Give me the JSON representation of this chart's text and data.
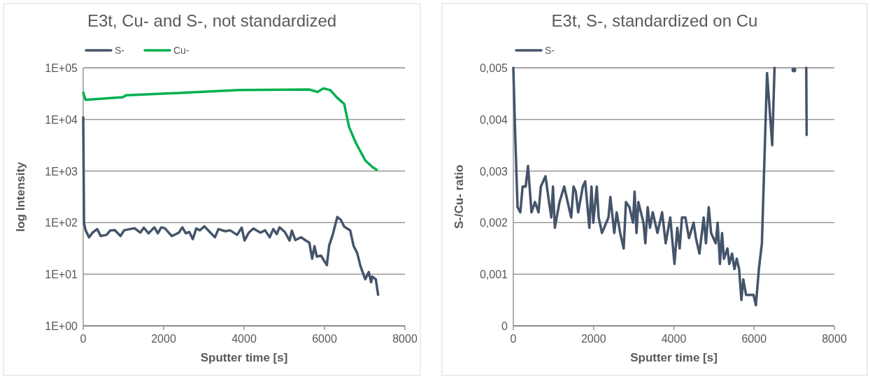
{
  "chart_data": [
    {
      "type": "line",
      "title": "E3t, Cu- and S-, not standardized",
      "xlabel": "Sputter time [s]",
      "ylabel": "log Intensity",
      "log": "y",
      "grid": "y",
      "legend": "top",
      "line_style": "solid",
      "marker": "none",
      "xlim": [
        0,
        8000
      ],
      "xticks": [
        0,
        2000,
        4000,
        6000,
        8000
      ],
      "ylim": [
        1,
        100000
      ],
      "yticks": [
        {
          "value": 1,
          "label": "1E+00"
        },
        {
          "value": 10,
          "label": "1E+01"
        },
        {
          "value": 100,
          "label": "1E+02"
        },
        {
          "value": 1000,
          "label": "1E+03"
        },
        {
          "value": 10000,
          "label": "1E+04"
        },
        {
          "value": 100000,
          "label": "1E+05"
        }
      ],
      "series": [
        {
          "name": "S-",
          "color": "#44546a",
          "x": [
            0,
            20,
            60,
            145,
            232,
            348,
            435,
            580,
            667,
            783,
            928,
            1015,
            1160,
            1275,
            1420,
            1507,
            1623,
            1768,
            1855,
            1942,
            2029,
            2203,
            2377,
            2464,
            2551,
            2638,
            2725,
            2812,
            2899,
            3014,
            3130,
            3275,
            3362,
            3536,
            3652,
            3826,
            3942,
            4012,
            4116,
            4232,
            4406,
            4522,
            4638,
            4725,
            4812,
            4882,
            5014,
            5130,
            5188,
            5275,
            5420,
            5536,
            5623,
            5693,
            5751,
            5809,
            5913,
            6058,
            6116,
            6203,
            6319,
            6406,
            6493,
            6638,
            6725,
            6812,
            6899,
            7014,
            7101,
            7159,
            7188,
            7275,
            7333
          ],
          "values": [
            11000,
            98,
            71,
            52,
            64,
            75,
            55,
            58,
            70,
            72,
            55,
            71,
            75,
            78,
            64,
            80,
            62,
            81,
            62,
            81,
            78,
            55,
            64,
            81,
            62,
            66,
            48,
            77,
            71,
            85,
            68,
            52,
            75,
            68,
            71,
            58,
            80,
            45,
            64,
            77,
            64,
            71,
            52,
            75,
            60,
            81,
            66,
            45,
            70,
            46,
            52,
            45,
            41,
            20,
            35,
            22,
            23,
            15,
            36,
            58,
            129,
            113,
            83,
            71,
            35,
            26,
            14,
            8,
            11,
            7,
            9,
            8,
            4
          ]
        },
        {
          "name": "Cu-",
          "color": "#00b050",
          "x": [
            0,
            58,
            985,
            1070,
            2145,
            3885,
            5620,
            5830,
            5970,
            6145,
            6320,
            6490,
            6610,
            6780,
            7015,
            7190,
            7300
          ],
          "values": [
            33000,
            24000,
            27000,
            29500,
            32000,
            37000,
            38000,
            34000,
            40000,
            37000,
            26000,
            20000,
            7200,
            3500,
            1600,
            1200,
            1050
          ]
        }
      ]
    },
    {
      "type": "line",
      "title": "E3t, S-, standardized on Cu",
      "xlabel": "Sputter time [s]",
      "ylabel": "S-/Cu- ratio",
      "grid": "y",
      "legend": "top",
      "line_style": "solid",
      "marker": "none",
      "xlim": [
        0,
        8000
      ],
      "xticks": [
        0,
        2000,
        4000,
        6000,
        8000
      ],
      "ylim": [
        0,
        0.005
      ],
      "yticks": [
        0,
        {
          "value": 0.001,
          "label": "0,001"
        },
        {
          "value": 0.002,
          "label": "0,002"
        },
        {
          "value": 0.003,
          "label": "0,003"
        },
        {
          "value": 0.004,
          "label": "0,004"
        },
        {
          "value": 0.005,
          "label": "0,005"
        }
      ],
      "series": [
        {
          "name": "S-",
          "color": "#44546a",
          "x": [
            0,
            47,
            105,
            174,
            232,
            308,
            366,
            453,
            541,
            628,
            686,
            802,
            889,
            947,
            988,
            1035,
            1151,
            1267,
            1442,
            1500,
            1557,
            1616,
            1732,
            1791,
            1895,
            1948,
            1993,
            2080,
            2127,
            2209,
            2371,
            2418,
            2516,
            2575,
            2663,
            2750,
            2807,
            2894,
            2982,
            3022,
            3069,
            3116,
            3243,
            3290,
            3348,
            3406,
            3475,
            3592,
            3708,
            3796,
            3911,
            4016,
            4086,
            4145,
            4202,
            4289,
            4377,
            4493,
            4551,
            4638,
            4743,
            4800,
            4870,
            4929,
            5045,
            5092,
            5149,
            5202,
            5248,
            5336,
            5382,
            5452,
            5510,
            5568,
            5627,
            5684,
            5731,
            5801,
            5917,
            5986,
            6045,
            6120,
            6195,
            6323,
            6452,
            6510,
            6750,
            7300,
            7310
          ],
          "values": [
            0.005,
            0.0037,
            0.0023,
            0.0022,
            0.0027,
            0.0027,
            0.0031,
            0.0022,
            0.0024,
            0.0022,
            0.0027,
            0.0029,
            0.0024,
            0.0021,
            0.0027,
            0.0019,
            0.0024,
            0.0027,
            0.0021,
            0.0027,
            0.0026,
            0.0022,
            0.0027,
            0.0028,
            0.0019,
            0.0027,
            0.002,
            0.0027,
            0.0021,
            0.0018,
            0.0021,
            0.0025,
            0.0018,
            0.0022,
            0.0018,
            0.0015,
            0.0024,
            0.0023,
            0.002,
            0.0026,
            0.0018,
            0.0024,
            0.002,
            0.0016,
            0.0023,
            0.0019,
            0.0022,
            0.0018,
            0.0022,
            0.0016,
            0.0021,
            0.0012,
            0.0019,
            0.0015,
            0.0021,
            0.0021,
            0.0017,
            0.002,
            0.0017,
            0.0014,
            0.0021,
            0.0016,
            0.0023,
            0.0018,
            0.0016,
            0.002,
            0.0012,
            0.0018,
            0.0013,
            0.0015,
            0.0012,
            0.0014,
            0.0011,
            0.0013,
            0.0011,
            0.0005,
            0.0009,
            0.0006,
            0.0006,
            0.0006,
            0.0004,
            0.0011,
            0.0016,
            0.0049,
            0.0035,
            0.005,
            null,
            0.005,
            0.0037
          ]
        },
        {
          "type": "scatter",
          "color": "#44546a",
          "marker": "circle",
          "x": [
            6992
          ],
          "values": [
            0.00496
          ]
        }
      ]
    }
  ]
}
